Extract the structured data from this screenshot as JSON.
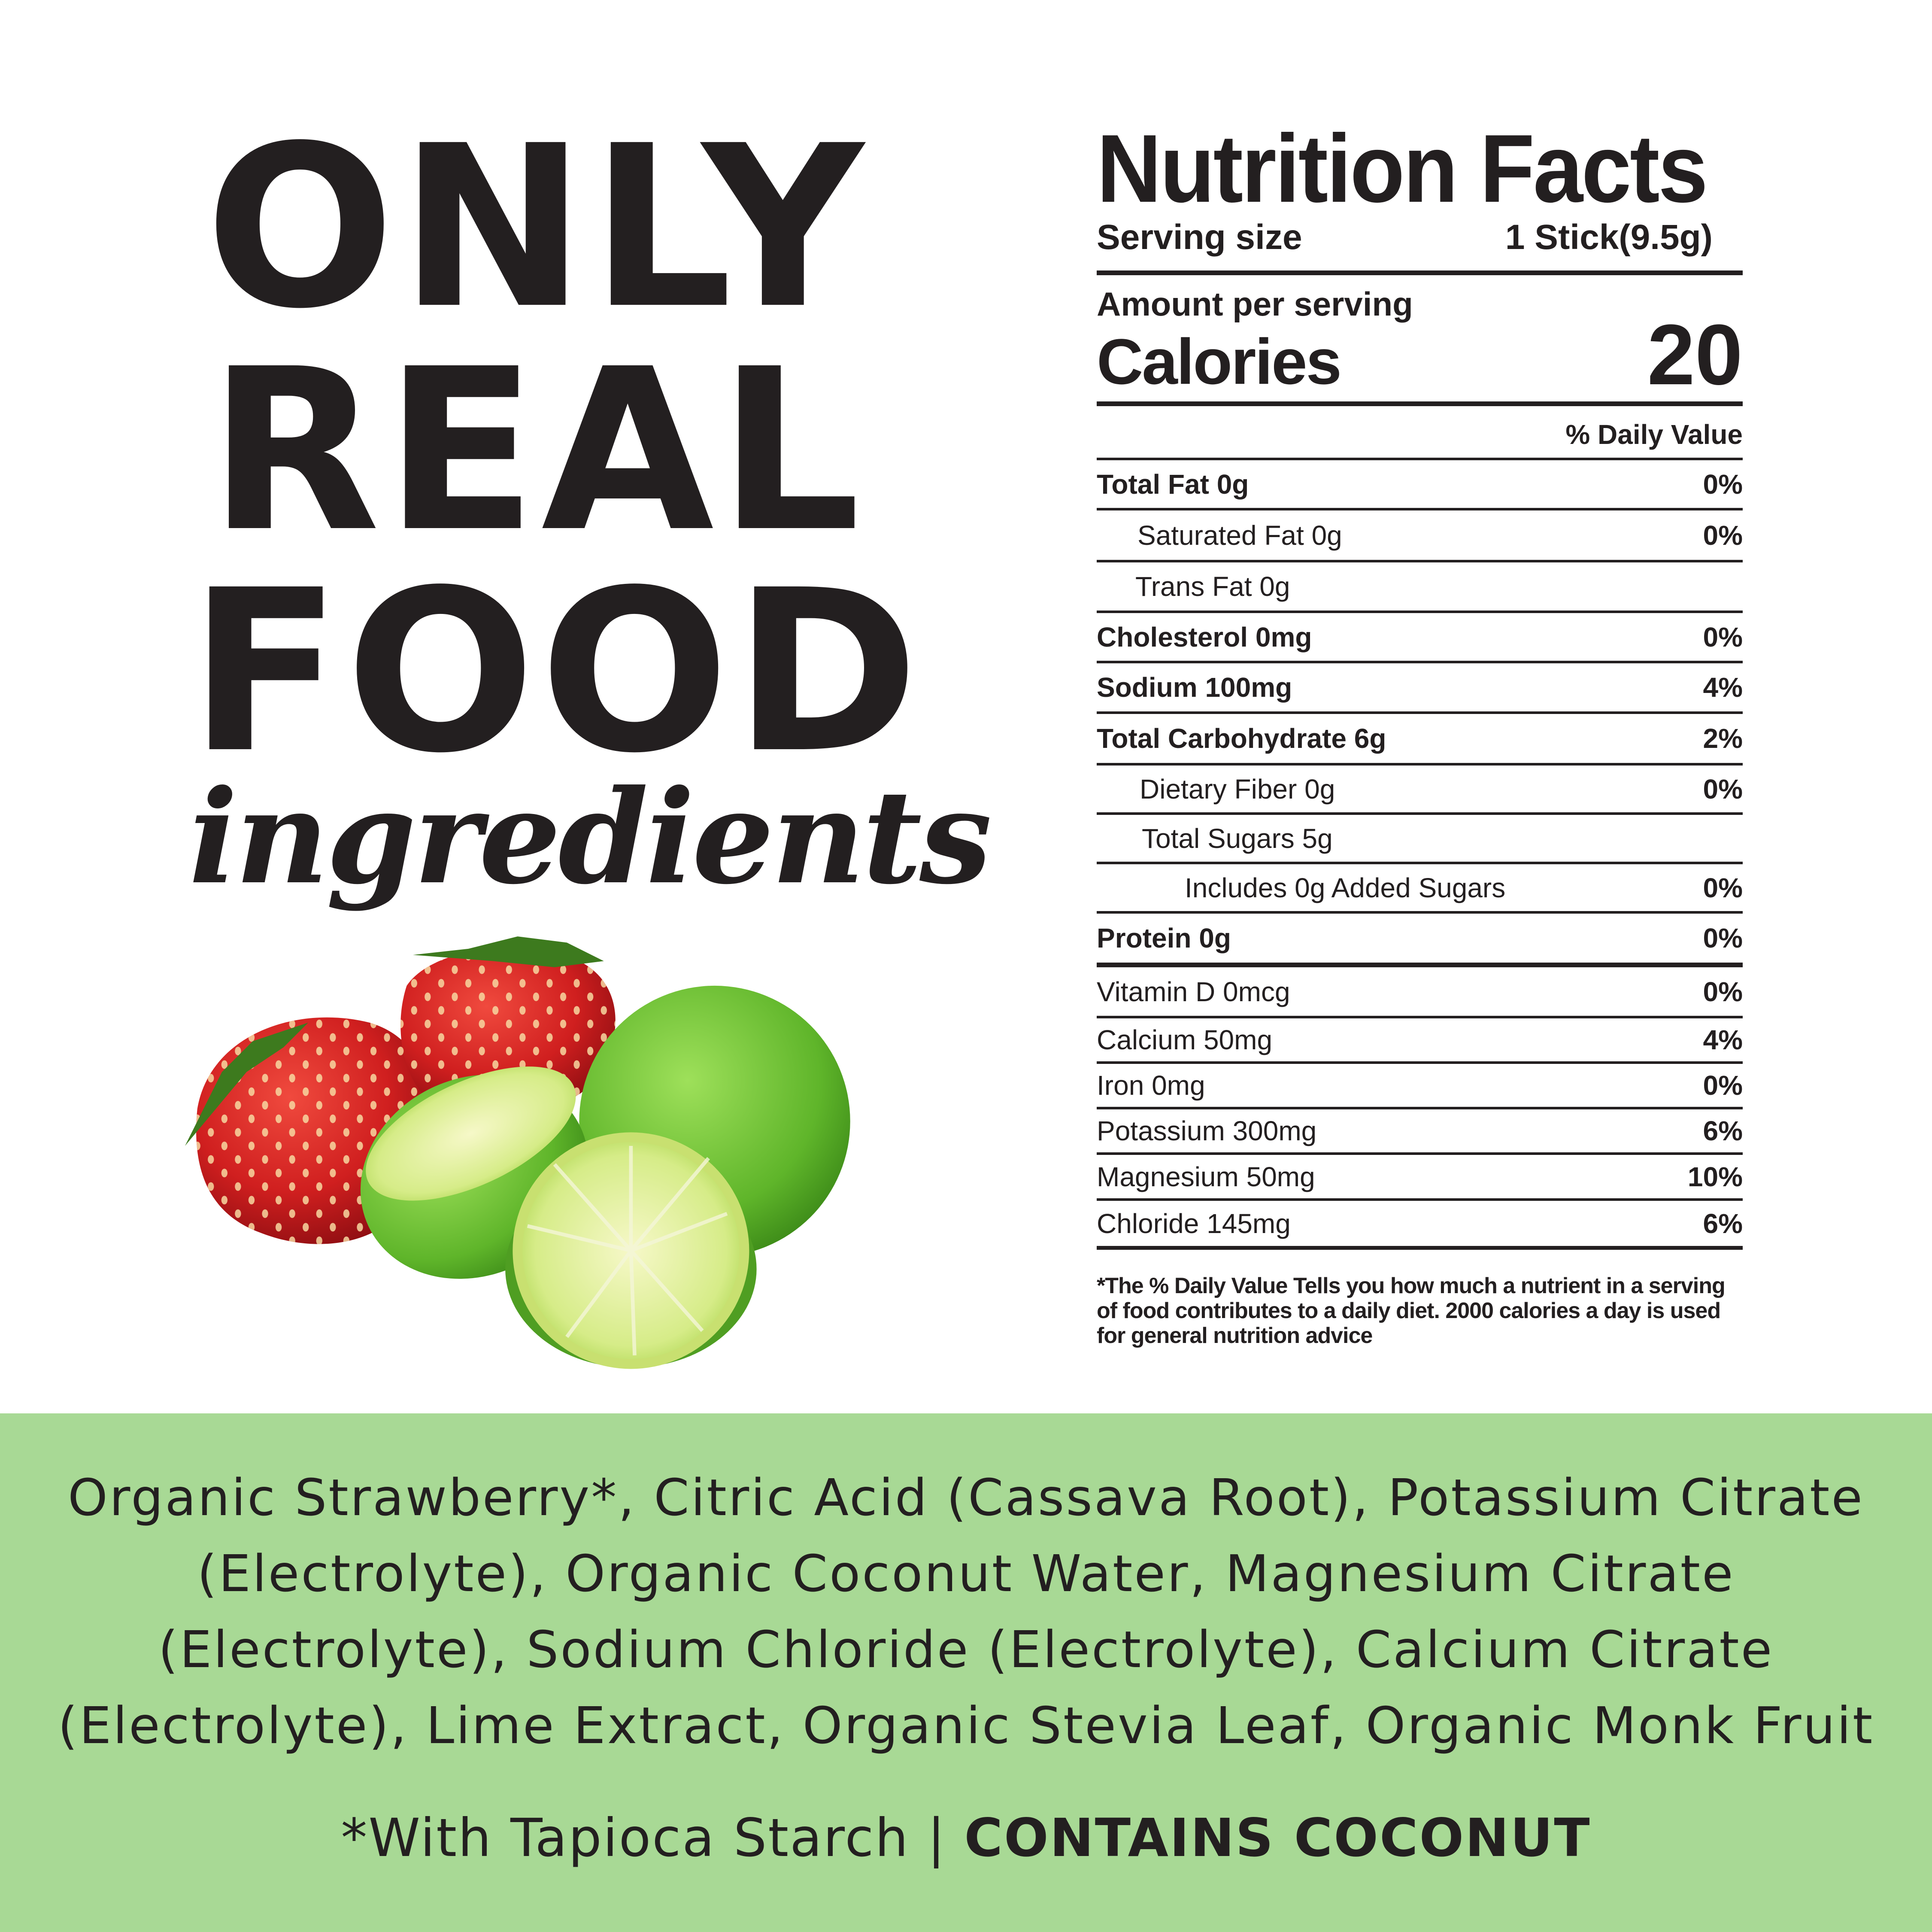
{
  "headline": {
    "line1": "ONLY",
    "line2": "REAL",
    "line3": "FOOD",
    "script": "ingredients"
  },
  "image": {
    "subject": "strawberries-and-limes"
  },
  "nutrition": {
    "title": "Nutrition Facts",
    "serving_label": "Serving size",
    "serving_value": "1 Stick(9.5g)",
    "amount_label": "Amount per serving",
    "calories_label": "Calories",
    "calories_value": "20",
    "dv_header": "% Daily Value",
    "rows": [
      {
        "name": "Total Fat 0g",
        "pct": "0%"
      },
      {
        "name": "Saturated Fat 0g",
        "pct": "0%"
      },
      {
        "name": "Trans Fat 0g",
        "pct": ""
      },
      {
        "name": "Cholesterol 0mg",
        "pct": "0%"
      },
      {
        "name": "Sodium 100mg",
        "pct": "4%"
      },
      {
        "name": "Total Carbohydrate 6g",
        "pct": "2%"
      },
      {
        "name": "Dietary Fiber 0g",
        "pct": "0%"
      },
      {
        "name": "Total Sugars 5g",
        "pct": ""
      },
      {
        "name": "Includes 0g Added Sugars",
        "pct": "0%"
      },
      {
        "name": "Protein 0g",
        "pct": "0%"
      },
      {
        "name": "Vitamin D 0mcg",
        "pct": "0%"
      },
      {
        "name": "Calcium 50mg",
        "pct": "4%"
      },
      {
        "name": "Iron 0mg",
        "pct": "0%"
      },
      {
        "name": "Potassium 300mg",
        "pct": "6%"
      },
      {
        "name": "Magnesium 50mg",
        "pct": "10%"
      },
      {
        "name": "Chloride 145mg",
        "pct": "6%"
      }
    ],
    "footnote": "*The % Daily Value Tells you how much a nutrient in a serving of food contributes to a daily diet. 2000 calories a day is used for general nutrition advice"
  },
  "ingredients": {
    "lines": [
      "Organic Strawberry*, Citric Acid (Cassava Root), Potassium Citrate",
      "(Electrolyte), Organic Coconut Water, Magnesium Citrate",
      "(Electrolyte), Sodium Chloride (Electrolyte), Calcium Citrate",
      "(Electrolyte), Lime Extract, Organic Stevia Leaf, Organic Monk Fruit"
    ],
    "note": "*With Tapioca Starch | ",
    "allergen": "CONTAINS COCONUT"
  },
  "colors": {
    "band": "#a8d995",
    "text": "#231f20"
  }
}
